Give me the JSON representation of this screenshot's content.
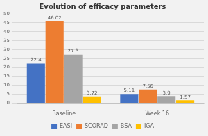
{
  "chart_data": {
    "type": "bar",
    "title": "Evolution of efficacy parameters",
    "categories": [
      "Baseline",
      "Week 16"
    ],
    "series": [
      {
        "name": "EASI",
        "color": "#4472c4",
        "values": [
          22.4,
          5.11
        ]
      },
      {
        "name": "SCORAD",
        "color": "#ed7d31",
        "values": [
          46.02,
          7.56
        ]
      },
      {
        "name": "BSA",
        "color": "#a5a5a5",
        "values": [
          27.3,
          3.9
        ]
      },
      {
        "name": "IGA",
        "color": "#ffc000",
        "values": [
          3.72,
          1.57
        ]
      }
    ],
    "ylim": [
      0,
      50
    ],
    "yticks": [
      0,
      5,
      10,
      15,
      20,
      25,
      30,
      35,
      40,
      45,
      50
    ],
    "grid": true,
    "data_labels": true,
    "legend": "bottom"
  }
}
